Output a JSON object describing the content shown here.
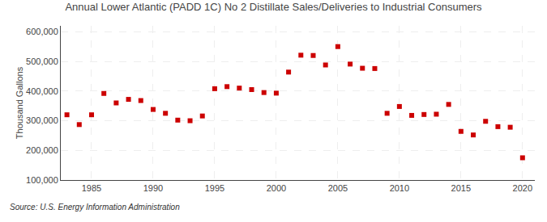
{
  "chart_data": {
    "type": "scatter",
    "title": "Annual Lower Atlantic (PADD 1C) No 2 Distillate Sales/Deliveries to Industrial Consumers",
    "ylabel": "Thousand Gallons",
    "annotations": [
      "Source: U.S. Energy Information Administration"
    ],
    "x": [
      1983,
      1984,
      1985,
      1986,
      1987,
      1988,
      1989,
      1990,
      1991,
      1992,
      1993,
      1994,
      1995,
      1996,
      1997,
      1998,
      1999,
      2000,
      2001,
      2002,
      2003,
      2004,
      2005,
      2006,
      2007,
      2008,
      2009,
      2010,
      2011,
      2012,
      2013,
      2014,
      2015,
      2016,
      2017,
      2018,
      2019,
      2020
    ],
    "values": [
      320000,
      287000,
      320000,
      392000,
      360000,
      372000,
      368000,
      338000,
      325000,
      302000,
      300000,
      316000,
      408000,
      415000,
      410000,
      405000,
      395000,
      393000,
      464000,
      521000,
      520000,
      488000,
      550000,
      491000,
      477000,
      476000,
      325000,
      348000,
      318000,
      321000,
      322000,
      355000,
      264000,
      252000,
      298000,
      280000,
      278000,
      175000
    ],
    "color": "#cc0000",
    "marker": "square",
    "xlim": [
      1982.5,
      2021
    ],
    "xticks": [
      1985,
      1990,
      1995,
      2000,
      2005,
      2010,
      2015,
      2020
    ],
    "ylim": [
      100000,
      620000
    ],
    "yticks": [
      {
        "value": 100000,
        "label": "100,000"
      },
      {
        "value": 200000,
        "label": "200,000"
      },
      {
        "value": 300000,
        "label": "300,000"
      },
      {
        "value": 400000,
        "label": "400,000"
      },
      {
        "value": 500000,
        "label": "500,000"
      },
      {
        "value": 600000,
        "label": "600,000"
      }
    ],
    "grid": true
  }
}
